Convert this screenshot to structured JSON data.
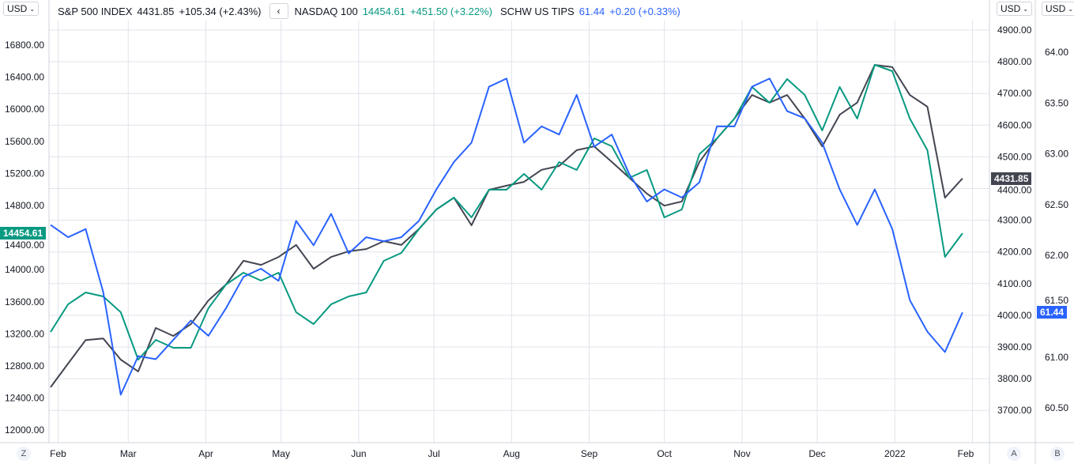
{
  "currency_left": "USD",
  "currency_a": "USD",
  "currency_b": "USD",
  "collapse_icon": "chevron-left-icon",
  "legend": [
    {
      "name": "S&P 500 INDEX",
      "value": "4431.85",
      "change": "+105.34 (+2.43%)",
      "color": "#434651"
    },
    {
      "name": "NASDAQ 100",
      "value": "14454.61",
      "change": "+451.50 (+3.22%)",
      "color": "#089981"
    },
    {
      "name": "SCHW US TIPS",
      "value": "61.44",
      "change": "+0.20 (+0.33%)",
      "color": "#2962ff"
    }
  ],
  "scale_labels": {
    "bottom_left": "Z",
    "a": "A",
    "b": "B"
  },
  "chart_data": {
    "type": "line",
    "x": [
      "2021-01-29",
      "2021-02-05",
      "2021-02-12",
      "2021-02-19",
      "2021-02-26",
      "2021-03-05",
      "2021-03-12",
      "2021-03-19",
      "2021-03-26",
      "2021-04-02",
      "2021-04-09",
      "2021-04-16",
      "2021-04-23",
      "2021-04-30",
      "2021-05-07",
      "2021-05-14",
      "2021-05-21",
      "2021-05-28",
      "2021-06-04",
      "2021-06-11",
      "2021-06-18",
      "2021-06-25",
      "2021-07-02",
      "2021-07-09",
      "2021-07-16",
      "2021-07-23",
      "2021-07-30",
      "2021-08-06",
      "2021-08-13",
      "2021-08-20",
      "2021-08-27",
      "2021-09-03",
      "2021-09-10",
      "2021-09-17",
      "2021-09-24",
      "2021-10-01",
      "2021-10-08",
      "2021-10-15",
      "2021-10-22",
      "2021-10-29",
      "2021-11-05",
      "2021-11-12",
      "2021-11-19",
      "2021-11-26",
      "2021-12-03",
      "2021-12-10",
      "2021-12-17",
      "2021-12-24",
      "2021-12-31",
      "2022-01-07",
      "2022-01-14",
      "2022-01-21",
      "2022-01-28"
    ],
    "x_ticks": [
      {
        "label": "Feb",
        "date": "2021-02-01"
      },
      {
        "label": "Mar",
        "date": "2021-03-01"
      },
      {
        "label": "Apr",
        "date": "2021-04-01"
      },
      {
        "label": "May",
        "date": "2021-05-01"
      },
      {
        "label": "Jun",
        "date": "2021-06-01"
      },
      {
        "label": "Jul",
        "date": "2021-07-01"
      },
      {
        "label": "Aug",
        "date": "2021-08-01"
      },
      {
        "label": "Sep",
        "date": "2021-09-01"
      },
      {
        "label": "Oct",
        "date": "2021-10-01"
      },
      {
        "label": "Nov",
        "date": "2021-11-01"
      },
      {
        "label": "Dec",
        "date": "2021-12-01"
      },
      {
        "label": "2022",
        "date": "2022-01-01"
      },
      {
        "label": "Feb",
        "date": "2022-02-01"
      }
    ],
    "series": [
      {
        "name": "S&P 500 INDEX",
        "axis": "A",
        "color": "#434651",
        "values": [
          3773,
          3848,
          3922,
          3927,
          3860,
          3823,
          3960,
          3935,
          3972,
          4047,
          4097,
          4172,
          4159,
          4184,
          4222,
          4147,
          4184,
          4202,
          4209,
          4234,
          4222,
          4272,
          4334,
          4371,
          4284,
          4396,
          4409,
          4421,
          4459,
          4471,
          4521,
          4533,
          4484,
          4434,
          4384,
          4346,
          4359,
          4484,
          4558,
          4621,
          4695,
          4671,
          4695,
          4621,
          4533,
          4633,
          4671,
          4790,
          4783,
          4695,
          4658,
          4371,
          4431.85
        ]
      },
      {
        "name": "NASDAQ 100",
        "axis": "left",
        "color": "#089981",
        "values": [
          13224,
          13569,
          13716,
          13667,
          13470,
          12879,
          13125,
          13027,
          13027,
          13519,
          13815,
          13963,
          13864,
          13963,
          13470,
          13322,
          13569,
          13667,
          13716,
          14110,
          14209,
          14505,
          14751,
          14899,
          14652,
          14997,
          14997,
          15194,
          14997,
          15342,
          15243,
          15637,
          15539,
          15145,
          15243,
          14652,
          14751,
          15440,
          15637,
          15884,
          16278,
          16081,
          16376,
          16179,
          15736,
          16278,
          15884,
          16554,
          16475,
          15884,
          15490,
          14160,
          14454.61
        ]
      },
      {
        "name": "SCHW US TIPS",
        "axis": "B",
        "color": "#2962ff",
        "values": [
          62.3,
          62.18,
          62.26,
          61.64,
          60.63,
          61.01,
          60.98,
          61.17,
          61.36,
          61.21,
          61.48,
          61.79,
          61.87,
          61.75,
          62.34,
          62.1,
          62.41,
          62.02,
          62.18,
          62.14,
          62.18,
          62.34,
          62.65,
          62.92,
          63.11,
          63.66,
          63.74,
          63.11,
          63.27,
          63.19,
          63.58,
          63.07,
          63.19,
          62.8,
          62.53,
          62.65,
          62.57,
          62.72,
          63.27,
          63.27,
          63.66,
          63.74,
          63.42,
          63.35,
          63.11,
          62.65,
          62.3,
          62.65,
          62.26,
          61.56,
          61.25,
          61.05,
          61.44
        ]
      }
    ],
    "axes": {
      "left": {
        "ticks": [
          "16800.00",
          "16400.00",
          "16000.00",
          "15600.00",
          "15200.00",
          "14800.00",
          "14400.00",
          "14000.00",
          "13600.00",
          "13200.00",
          "12800.00",
          "12400.00",
          "12000.00"
        ],
        "range": [
          11900,
          17000
        ]
      },
      "A": {
        "ticks": [
          "4900.00",
          "4800.00",
          "4700.00",
          "4600.00",
          "4500.00",
          "4400.00",
          "4300.00",
          "4200.00",
          "4100.00",
          "4000.00",
          "3900.00",
          "3800.00",
          "3700.00"
        ],
        "range": [
          3600,
          4930
        ]
      },
      "B": {
        "ticks": [
          "64.00",
          "63.50",
          "63.00",
          "62.50",
          "62.00",
          "61.50",
          "61.00",
          "60.50"
        ],
        "range": [
          60.2,
          64.3
        ]
      }
    },
    "last_values": {
      "left": "14454.61",
      "A": "4431.85",
      "B": "61.44"
    },
    "grid": true
  }
}
